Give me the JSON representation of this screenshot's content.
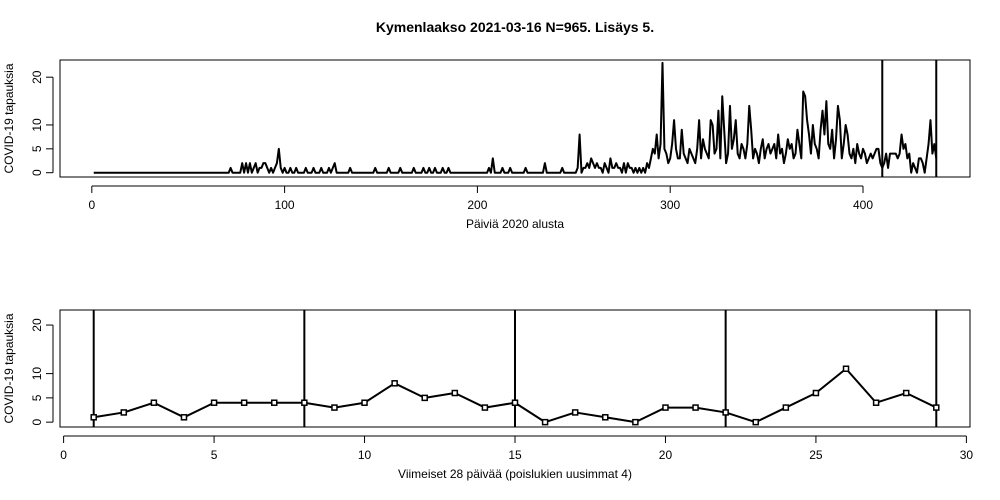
{
  "chart_data": [
    {
      "type": "line",
      "title": "Kymenlaakso 2021-03-16 N=965. Lisäys 5.",
      "x_label": "Päiviä 2020 alusta",
      "y_label": "COVID-19 tapauksia",
      "color": "#000000",
      "markers": false,
      "x": [
        1,
        2,
        3,
        4,
        5,
        6,
        7,
        8,
        9,
        10,
        11,
        12,
        13,
        14,
        15,
        16,
        17,
        18,
        19,
        20,
        21,
        22,
        23,
        24,
        25,
        26,
        27,
        28,
        29,
        30,
        31,
        32,
        33,
        34,
        35,
        36,
        37,
        38,
        39,
        40,
        41,
        42,
        43,
        44,
        45,
        46,
        47,
        48,
        49,
        50,
        51,
        52,
        53,
        54,
        55,
        56,
        57,
        58,
        59,
        60,
        61,
        62,
        63,
        64,
        65,
        66,
        67,
        68,
        69,
        70,
        71,
        72,
        73,
        74,
        75,
        76,
        77,
        78,
        79,
        80,
        81,
        82,
        83,
        84,
        85,
        86,
        87,
        88,
        89,
        90,
        91,
        92,
        93,
        94,
        95,
        96,
        97,
        98,
        99,
        100,
        101,
        102,
        103,
        104,
        105,
        106,
        107,
        108,
        109,
        110,
        111,
        112,
        113,
        114,
        115,
        116,
        117,
        118,
        119,
        120,
        121,
        122,
        123,
        124,
        125,
        126,
        127,
        128,
        129,
        130,
        131,
        132,
        133,
        134,
        135,
        136,
        137,
        138,
        139,
        140,
        141,
        142,
        143,
        144,
        145,
        146,
        147,
        148,
        149,
        150,
        151,
        152,
        153,
        154,
        155,
        156,
        157,
        158,
        159,
        160,
        161,
        162,
        163,
        164,
        165,
        166,
        167,
        168,
        169,
        170,
        171,
        172,
        173,
        174,
        175,
        176,
        177,
        178,
        179,
        180,
        181,
        182,
        183,
        184,
        185,
        186,
        187,
        188,
        189,
        190,
        191,
        192,
        193,
        194,
        195,
        196,
        197,
        198,
        199,
        200,
        201,
        202,
        203,
        204,
        205,
        206,
        207,
        208,
        209,
        210,
        211,
        212,
        213,
        214,
        215,
        216,
        217,
        218,
        219,
        220,
        221,
        222,
        223,
        224,
        225,
        226,
        227,
        228,
        229,
        230,
        231,
        232,
        233,
        234,
        235,
        236,
        237,
        238,
        239,
        240,
        241,
        242,
        243,
        244,
        245,
        246,
        247,
        248,
        249,
        250,
        251,
        252,
        253,
        254,
        255,
        256,
        257,
        258,
        259,
        260,
        261,
        262,
        263,
        264,
        265,
        266,
        267,
        268,
        269,
        270,
        271,
        272,
        273,
        274,
        275,
        276,
        277,
        278,
        279,
        280,
        281,
        282,
        283,
        284,
        285,
        286,
        287,
        288,
        289,
        290,
        291,
        292,
        293,
        294,
        295,
        296,
        297,
        298,
        299,
        300,
        301,
        302,
        303,
        304,
        305,
        306,
        307,
        308,
        309,
        310,
        311,
        312,
        313,
        314,
        315,
        316,
        317,
        318,
        319,
        320,
        321,
        322,
        323,
        324,
        325,
        326,
        327,
        328,
        329,
        330,
        331,
        332,
        333,
        334,
        335,
        336,
        337,
        338,
        339,
        340,
        341,
        342,
        343,
        344,
        345,
        346,
        347,
        348,
        349,
        350,
        351,
        352,
        353,
        354,
        355,
        356,
        357,
        358,
        359,
        360,
        361,
        362,
        363,
        364,
        365,
        366,
        367,
        368,
        369,
        370,
        371,
        372,
        373,
        374,
        375,
        376,
        377,
        378,
        379,
        380,
        381,
        382,
        383,
        384,
        385,
        386,
        387,
        388,
        389,
        390,
        391,
        392,
        393,
        394,
        395,
        396,
        397,
        398,
        399,
        400,
        401,
        402,
        403,
        404,
        405,
        406,
        407,
        408,
        409,
        410,
        411,
        412,
        413,
        414,
        415,
        416,
        417,
        418,
        419,
        420,
        421,
        422,
        423,
        424,
        425,
        426,
        427,
        428,
        429,
        430,
        431,
        432,
        433,
        434,
        435,
        436,
        437,
        438
      ],
      "values": [
        0,
        0,
        0,
        0,
        0,
        0,
        0,
        0,
        0,
        0,
        0,
        0,
        0,
        0,
        0,
        0,
        0,
        0,
        0,
        0,
        0,
        0,
        0,
        0,
        0,
        0,
        0,
        0,
        0,
        0,
        0,
        0,
        0,
        0,
        0,
        0,
        0,
        0,
        0,
        0,
        0,
        0,
        0,
        0,
        0,
        0,
        0,
        0,
        0,
        0,
        0,
        0,
        0,
        0,
        0,
        0,
        0,
        0,
        0,
        0,
        0,
        0,
        0,
        0,
        0,
        0,
        0,
        0,
        0,
        0,
        0,
        1,
        0,
        0,
        0,
        0,
        0,
        2,
        0,
        2,
        0,
        2,
        0,
        1,
        2,
        0,
        1,
        1,
        2,
        2,
        1,
        0,
        1,
        0,
        1,
        2,
        5,
        1,
        0,
        1,
        0,
        0,
        1,
        0,
        0,
        1,
        0,
        0,
        0,
        0,
        1,
        0,
        0,
        0,
        1,
        0,
        0,
        0,
        1,
        0,
        0,
        0,
        1,
        0,
        1,
        2,
        0,
        0,
        0,
        0,
        0,
        0,
        0,
        1,
        0,
        0,
        0,
        0,
        0,
        0,
        0,
        0,
        0,
        0,
        0,
        0,
        1,
        0,
        0,
        0,
        0,
        0,
        0,
        1,
        0,
        0,
        0,
        0,
        0,
        1,
        0,
        0,
        0,
        0,
        0,
        0,
        1,
        0,
        0,
        0,
        0,
        1,
        0,
        0,
        1,
        0,
        0,
        1,
        0,
        0,
        0,
        1,
        0,
        0,
        1,
        0,
        0,
        0,
        0,
        0,
        0,
        0,
        0,
        0,
        0,
        0,
        0,
        0,
        0,
        0,
        0,
        0,
        0,
        0,
        0,
        1,
        0,
        3,
        0,
        0,
        0,
        0,
        1,
        0,
        0,
        0,
        1,
        0,
        0,
        0,
        0,
        0,
        0,
        0,
        1,
        0,
        0,
        0,
        0,
        0,
        0,
        0,
        0,
        0,
        2,
        0,
        0,
        0,
        0,
        0,
        0,
        0,
        0,
        1,
        0,
        0,
        0,
        0,
        0,
        0,
        0,
        1,
        8,
        0,
        1,
        1,
        2,
        1,
        3,
        2,
        1,
        2,
        1,
        1,
        0,
        2,
        1,
        0,
        3,
        1,
        1,
        2,
        1,
        1,
        0,
        2,
        0,
        2,
        1,
        1,
        0,
        1,
        0,
        1,
        0,
        1,
        0,
        2,
        1,
        3,
        5,
        4,
        8,
        3,
        6,
        23,
        5,
        4,
        2,
        3,
        6,
        11,
        5,
        3,
        3,
        9,
        4,
        3,
        2,
        5,
        4,
        3,
        2,
        5,
        11,
        3,
        7,
        5,
        4,
        3,
        11,
        10,
        4,
        5,
        13,
        3,
        16,
        9,
        2,
        4,
        14,
        5,
        7,
        11,
        4,
        3,
        6,
        5,
        3,
        6,
        14,
        9,
        3,
        5,
        4,
        2,
        5,
        7,
        3,
        5,
        6,
        4,
        5,
        6,
        3,
        8,
        4,
        5,
        2,
        4,
        7,
        5,
        6,
        3,
        4,
        9,
        6,
        3,
        17,
        16,
        11,
        8,
        4,
        10,
        6,
        5,
        3,
        9,
        13,
        8,
        15,
        6,
        5,
        9,
        3,
        7,
        14,
        11,
        3,
        6,
        10,
        8,
        4,
        3,
        5,
        2,
        6,
        4,
        3,
        5,
        4,
        2,
        3,
        4,
        3,
        4,
        5,
        5,
        2,
        1,
        2,
        4,
        1,
        4,
        4,
        4,
        4,
        3,
        4,
        8,
        5,
        6,
        3,
        4,
        0,
        2,
        1,
        0,
        3,
        3,
        2,
        0,
        3,
        6,
        11,
        4,
        6,
        3
      ],
      "vlines": [
        410,
        438
      ],
      "xlim": [
        -16.5,
        455.5
      ],
      "ylim": [
        -0.9,
        23.6
      ],
      "xticks": [
        0,
        100,
        200,
        300,
        400
      ],
      "yticks": [
        0,
        5,
        10,
        20
      ]
    },
    {
      "type": "line",
      "x_label": "Viimeiset 28 päivää (poislukien uusimmat 4)",
      "y_label": "COVID-19 tapauksia",
      "color": "#000000",
      "markers": true,
      "x": [
        1,
        2,
        3,
        4,
        5,
        6,
        7,
        8,
        9,
        10,
        11,
        12,
        13,
        14,
        15,
        16,
        17,
        18,
        19,
        20,
        21,
        22,
        23,
        24,
        25,
        26,
        27,
        28,
        29
      ],
      "values": [
        1,
        2,
        4,
        1,
        4,
        4,
        4,
        4,
        3,
        4,
        8,
        5,
        6,
        3,
        4,
        0,
        2,
        1,
        0,
        3,
        3,
        2,
        0,
        3,
        6,
        11,
        4,
        6,
        3
      ],
      "vlines": [
        1,
        8,
        15,
        22,
        29
      ],
      "xlim": [
        -0.12,
        30.12
      ],
      "ylim": [
        -1,
        23.1
      ],
      "xticks": [
        0,
        5,
        10,
        15,
        20,
        25,
        30
      ],
      "yticks": [
        0,
        5,
        10,
        20
      ]
    }
  ]
}
